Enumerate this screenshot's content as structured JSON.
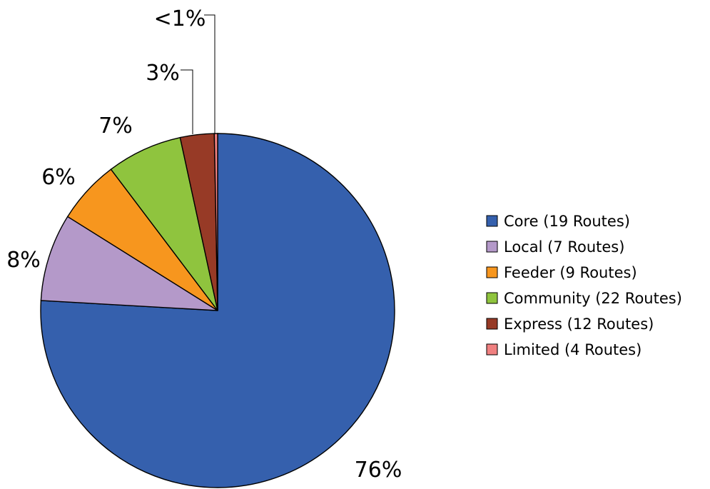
{
  "chart_data": {
    "type": "pie",
    "title": "",
    "categories": [
      "Core (19 Routes)",
      "Local (7 Routes)",
      "Feeder (9 Routes)",
      "Community (22 Routes)",
      "Express (12 Routes)",
      "Limited (4 Routes)"
    ],
    "values": [
      75.9,
      8.0,
      5.8,
      6.9,
      3.1,
      0.3
    ],
    "labels": [
      "76%",
      "8%",
      "6%",
      "7%",
      "3%",
      "<1%"
    ],
    "colors": [
      "#3560AD",
      "#B499C9",
      "#F7961E",
      "#8FC43E",
      "#973A26",
      "#F08080"
    ],
    "start_angle_deg": 0,
    "direction": "clockwise",
    "legend_position": "right"
  }
}
